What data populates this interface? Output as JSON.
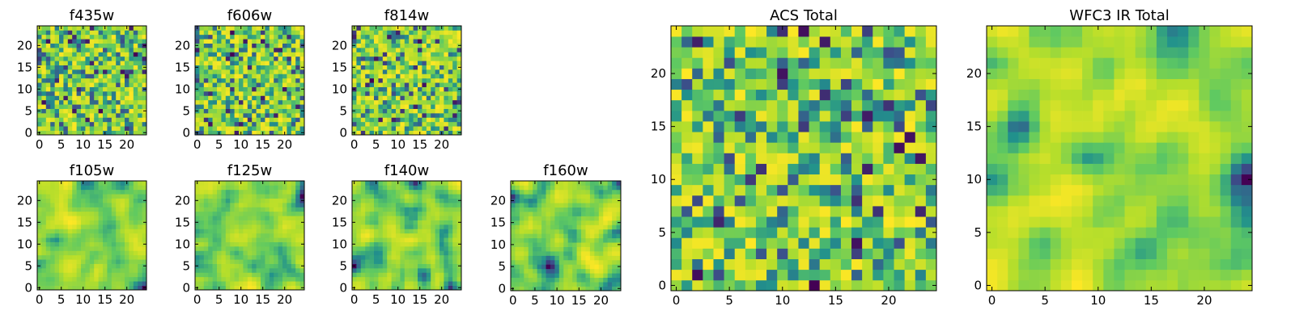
{
  "chart_data": [
    {
      "type": "heatmap",
      "title": "f435w",
      "grid": 25,
      "seed": 11,
      "smooth": 0,
      "xticks": [
        "0",
        "5",
        "10",
        "15",
        "20"
      ],
      "yticks": [
        "0",
        "5",
        "10",
        "15",
        "20"
      ],
      "xlim": [
        0,
        24
      ],
      "ylim": [
        0,
        24
      ],
      "colormap": "viridis"
    },
    {
      "type": "heatmap",
      "title": "f606w",
      "grid": 25,
      "seed": 23,
      "smooth": 0,
      "xticks": [
        "0",
        "5",
        "10",
        "15",
        "20"
      ],
      "yticks": [
        "0",
        "5",
        "10",
        "15",
        "20"
      ],
      "xlim": [
        0,
        24
      ],
      "ylim": [
        0,
        24
      ],
      "colormap": "viridis"
    },
    {
      "type": "heatmap",
      "title": "f814w",
      "grid": 25,
      "seed": 37,
      "smooth": 0,
      "xticks": [
        "0",
        "5",
        "10",
        "15",
        "20"
      ],
      "yticks": [
        "0",
        "5",
        "10",
        "15",
        "20"
      ],
      "xlim": [
        0,
        24
      ],
      "ylim": [
        0,
        24
      ],
      "colormap": "viridis"
    },
    {
      "type": "heatmap",
      "title": "f105w",
      "grid": 25,
      "seed": 41,
      "smooth": 2,
      "xticks": [
        "0",
        "5",
        "10",
        "15",
        "20"
      ],
      "yticks": [
        "0",
        "5",
        "10",
        "15",
        "20"
      ],
      "xlim": [
        0,
        24
      ],
      "ylim": [
        0,
        24
      ],
      "colormap": "viridis"
    },
    {
      "type": "heatmap",
      "title": "f125w",
      "grid": 25,
      "seed": 53,
      "smooth": 2,
      "xticks": [
        "0",
        "5",
        "10",
        "15",
        "20"
      ],
      "yticks": [
        "0",
        "5",
        "10",
        "15",
        "20"
      ],
      "xlim": [
        0,
        24
      ],
      "ylim": [
        0,
        24
      ],
      "colormap": "viridis"
    },
    {
      "type": "heatmap",
      "title": "f140w",
      "grid": 25,
      "seed": 67,
      "smooth": 2,
      "xticks": [
        "0",
        "5",
        "10",
        "15",
        "20"
      ],
      "yticks": [
        "0",
        "5",
        "10",
        "15",
        "20"
      ],
      "xlim": [
        0,
        24
      ],
      "ylim": [
        0,
        24
      ],
      "colormap": "viridis"
    },
    {
      "type": "heatmap",
      "title": "f160w",
      "grid": 25,
      "seed": 79,
      "smooth": 2,
      "xticks": [
        "0",
        "5",
        "10",
        "15",
        "20"
      ],
      "yticks": [
        "0",
        "5",
        "10",
        "15",
        "20"
      ],
      "xlim": [
        0,
        24
      ],
      "ylim": [
        0,
        24
      ],
      "colormap": "viridis"
    },
    {
      "type": "heatmap",
      "title": "ACS Total",
      "grid": 25,
      "seed": 97,
      "smooth": 0,
      "xticks": [
        "0",
        "5",
        "10",
        "15",
        "20"
      ],
      "yticks": [
        "0",
        "5",
        "10",
        "15",
        "20"
      ],
      "xlim": [
        0,
        24
      ],
      "ylim": [
        0,
        24
      ],
      "colormap": "viridis"
    },
    {
      "type": "heatmap",
      "title": "WFC3 IR Total",
      "grid": 25,
      "seed": 113,
      "smooth": 2,
      "xticks": [
        "0",
        "5",
        "10",
        "15",
        "20"
      ],
      "yticks": [
        "0",
        "5",
        "10",
        "15",
        "20"
      ],
      "xlim": [
        0,
        24
      ],
      "ylim": [
        0,
        24
      ],
      "colormap": "viridis"
    }
  ],
  "colors": {
    "viridis": [
      "#440154",
      "#3b528b",
      "#21918c",
      "#5ec962",
      "#b5de2b",
      "#fde725"
    ]
  }
}
